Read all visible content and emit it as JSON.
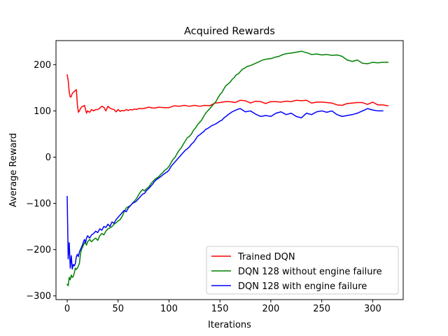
{
  "chart_data": {
    "type": "line",
    "title": "Acquired Rewards",
    "xlabel": "Iterations",
    "ylabel": "Average Reward",
    "xlim": [
      -11,
      330
    ],
    "ylim": [
      -308,
      252
    ],
    "xticks": [
      0,
      50,
      100,
      150,
      200,
      250,
      300
    ],
    "yticks": [
      -300,
      -200,
      -100,
      0,
      100,
      200
    ],
    "grid": false,
    "legend_position": "lower-right",
    "series": [
      {
        "name": "Trained DQN",
        "color": "#ff0000",
        "x": [
          0,
          1,
          2,
          3,
          4,
          5,
          6,
          7,
          8,
          9,
          10,
          11,
          12,
          13,
          14,
          15,
          16,
          17,
          18,
          19,
          20,
          22,
          24,
          26,
          28,
          30,
          32,
          34,
          36,
          38,
          40,
          42,
          44,
          46,
          48,
          50,
          52,
          54,
          56,
          58,
          60,
          62,
          64,
          66,
          68,
          70,
          75,
          80,
          85,
          90,
          95,
          100,
          105,
          110,
          115,
          120,
          125,
          130,
          135,
          140,
          145,
          150,
          155,
          160,
          165,
          170,
          175,
          180,
          185,
          190,
          195,
          200,
          205,
          210,
          215,
          220,
          225,
          230,
          235,
          240,
          245,
          250,
          255,
          260,
          265,
          270,
          275,
          280,
          285,
          290,
          295,
          300,
          305,
          310,
          315
        ],
        "y": [
          178,
          165,
          140,
          130,
          131,
          138,
          140,
          142,
          144,
          146,
          113,
          97,
          100,
          105,
          108,
          110,
          110,
          112,
          103,
          95,
          100,
          97,
          103,
          100,
          103,
          103,
          106,
          110,
          108,
          100,
          110,
          106,
          104,
          103,
          98,
          103,
          99,
          101,
          100,
          103,
          101,
          103,
          102,
          104,
          103,
          105,
          105,
          108,
          106,
          108,
          107,
          107,
          111,
          110,
          112,
          110,
          112,
          110,
          112,
          111,
          117,
          118,
          120,
          120,
          118,
          123,
          122,
          117,
          121,
          120,
          116,
          120,
          120,
          119,
          121,
          120,
          123,
          122,
          123,
          117,
          119,
          119,
          118,
          117,
          113,
          112,
          116,
          117,
          118,
          118,
          114,
          119,
          113,
          113,
          111
        ]
      },
      {
        "name": "DQN 128 without engine failure",
        "color": "#008000",
        "x": [
          0,
          1,
          2,
          3,
          4,
          5,
          6,
          7,
          8,
          9,
          10,
          11,
          12,
          13,
          14,
          15,
          16,
          17,
          18,
          19,
          20,
          22,
          24,
          26,
          28,
          30,
          32,
          34,
          36,
          38,
          40,
          42,
          44,
          46,
          48,
          50,
          52,
          54,
          56,
          58,
          60,
          62,
          64,
          66,
          68,
          70,
          72,
          74,
          76,
          78,
          80,
          82,
          84,
          86,
          88,
          90,
          92,
          94,
          96,
          98,
          100,
          102,
          104,
          106,
          108,
          110,
          112,
          114,
          116,
          118,
          120,
          122,
          124,
          126,
          128,
          130,
          132,
          134,
          136,
          138,
          140,
          142,
          144,
          146,
          148,
          150,
          152,
          154,
          156,
          158,
          160,
          162,
          164,
          166,
          168,
          170,
          172,
          174,
          176,
          178,
          180,
          184,
          188,
          192,
          196,
          200,
          204,
          208,
          212,
          216,
          220,
          225,
          230,
          235,
          240,
          245,
          250,
          255,
          260,
          265,
          270,
          275,
          280,
          285,
          290,
          295,
          300,
          305,
          310,
          315
        ],
        "y": [
          -275,
          -278,
          -260,
          -265,
          -255,
          -260,
          -258,
          -250,
          -240,
          -243,
          -240,
          -235,
          -230,
          -210,
          -200,
          -195,
          -190,
          -185,
          -186,
          -190,
          -183,
          -178,
          -183,
          -178,
          -175,
          -180,
          -170,
          -165,
          -168,
          -160,
          -155,
          -153,
          -150,
          -145,
          -142,
          -138,
          -135,
          -128,
          -118,
          -110,
          -107,
          -105,
          -100,
          -95,
          -90,
          -82,
          -75,
          -70,
          -73,
          -68,
          -65,
          -58,
          -53,
          -48,
          -45,
          -42,
          -37,
          -33,
          -28,
          -25,
          -20,
          -12,
          -5,
          0,
          8,
          15,
          20,
          28,
          35,
          42,
          45,
          50,
          58,
          63,
          70,
          75,
          80,
          88,
          95,
          100,
          105,
          110,
          115,
          120,
          128,
          135,
          140,
          148,
          155,
          158,
          162,
          168,
          172,
          178,
          180,
          185,
          190,
          192,
          195,
          197,
          198,
          202,
          206,
          210,
          212,
          213,
          216,
          218,
          222,
          224,
          225,
          227,
          229,
          226,
          222,
          223,
          221,
          222,
          220,
          221,
          218,
          210,
          207,
          210,
          203,
          202,
          205,
          204,
          205,
          205
        ]
      },
      {
        "name": "DQN 128 with engine failure",
        "color": "#0000ff",
        "x": [
          0,
          1,
          2,
          3,
          4,
          5,
          6,
          7,
          8,
          9,
          10,
          11,
          12,
          13,
          14,
          15,
          16,
          17,
          18,
          19,
          20,
          22,
          24,
          26,
          28,
          30,
          32,
          34,
          36,
          38,
          40,
          42,
          44,
          46,
          48,
          50,
          52,
          54,
          56,
          58,
          60,
          62,
          64,
          66,
          68,
          70,
          72,
          74,
          76,
          78,
          80,
          82,
          84,
          86,
          88,
          90,
          92,
          94,
          96,
          98,
          100,
          102,
          104,
          106,
          108,
          110,
          112,
          114,
          116,
          118,
          120,
          122,
          124,
          126,
          128,
          130,
          132,
          134,
          136,
          138,
          140,
          142,
          144,
          146,
          148,
          150,
          152,
          154,
          156,
          158,
          160,
          162,
          164,
          166,
          168,
          170,
          175,
          180,
          185,
          190,
          195,
          200,
          205,
          210,
          215,
          220,
          225,
          230,
          235,
          240,
          245,
          250,
          255,
          260,
          265,
          270,
          275,
          280,
          285,
          290,
          295,
          300,
          305,
          310
        ],
        "y": [
          -85,
          -220,
          -185,
          -240,
          -213,
          -242,
          -232,
          -235,
          -230,
          -215,
          -210,
          -215,
          -205,
          -200,
          -195,
          -190,
          -183,
          -178,
          -185,
          -175,
          -170,
          -175,
          -168,
          -165,
          -160,
          -163,
          -155,
          -158,
          -150,
          -152,
          -145,
          -150,
          -140,
          -143,
          -135,
          -130,
          -125,
          -120,
          -115,
          -118,
          -110,
          -105,
          -100,
          -98,
          -95,
          -90,
          -85,
          -80,
          -78,
          -72,
          -68,
          -63,
          -58,
          -52,
          -48,
          -45,
          -42,
          -38,
          -35,
          -32,
          -28,
          -20,
          -15,
          -10,
          -5,
          0,
          5,
          10,
          15,
          18,
          22,
          28,
          32,
          38,
          45,
          48,
          52,
          55,
          60,
          62,
          65,
          68,
          70,
          72,
          75,
          78,
          80,
          85,
          88,
          92,
          95,
          98,
          100,
          102,
          104,
          105,
          98,
          100,
          93,
          88,
          90,
          88,
          95,
          98,
          92,
          95,
          88,
          85,
          95,
          92,
          98,
          100,
          97,
          100,
          92,
          88,
          90,
          92,
          95,
          100,
          105,
          102,
          100,
          100
        ]
      }
    ]
  }
}
